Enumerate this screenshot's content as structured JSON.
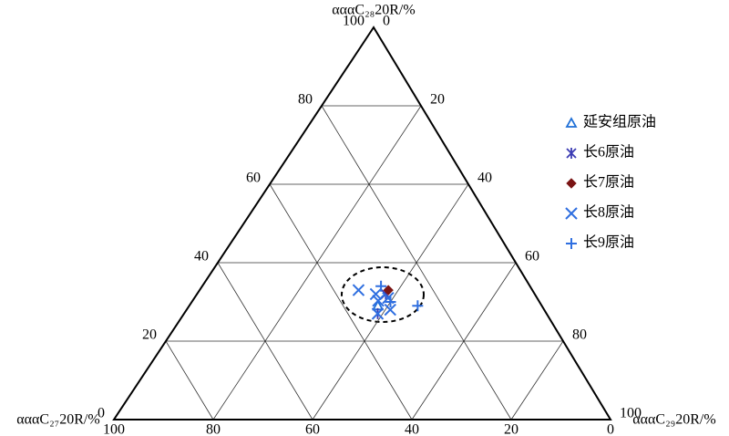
{
  "chart_data": {
    "type": "ternary",
    "axes": {
      "C27": {
        "title": "αααC₂₇20R/%",
        "ticks": [
          0,
          20,
          40,
          60,
          80,
          100
        ]
      },
      "C28": {
        "title": "αααC₂₈20R/%",
        "ticks": [
          0,
          20,
          40,
          60,
          80,
          100
        ]
      },
      "C29": {
        "title": "αααC₂₉20R/%",
        "ticks": [
          0,
          20,
          40,
          60,
          80,
          100
        ]
      }
    },
    "grid": true,
    "legend": "right",
    "series": [
      {
        "name": "延安组原油",
        "marker": "triangle",
        "color": "#1f6fd6",
        "values": [
          [
            33,
            29,
            38
          ]
        ]
      },
      {
        "name": "长6原油",
        "marker": "asterisk",
        "color": "#3b3bb3",
        "values": [
          [
            34,
            27,
            39
          ],
          [
            30,
            32,
            38
          ]
        ]
      },
      {
        "name": "长7原油",
        "marker": "diamond",
        "color": "#7a1414",
        "values": [
          [
            29,
            33,
            38
          ]
        ]
      },
      {
        "name": "长8原油",
        "marker": "x",
        "color": "#2f6fe0",
        "values": [
          [
            35,
            33,
            32
          ],
          [
            32,
            32,
            36
          ],
          [
            32,
            30,
            37
          ],
          [
            30,
            31,
            39
          ],
          [
            31,
            28,
            41
          ],
          [
            34,
            27,
            39
          ]
        ]
      },
      {
        "name": "长9原油",
        "marker": "plus",
        "color": "#2f6fe0",
        "values": [
          [
            30,
            34,
            36
          ],
          [
            25,
            29,
            46
          ],
          [
            30,
            30,
            40
          ]
        ]
      }
    ]
  }
}
